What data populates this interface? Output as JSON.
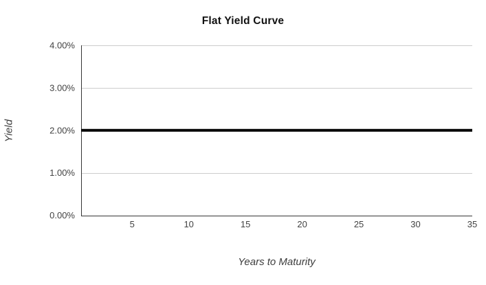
{
  "chart_data": {
    "type": "line",
    "title": "Flat Yield Curve",
    "xlabel": "Years to Maturity",
    "ylabel": "Yield",
    "x": [
      0.5,
      5,
      10,
      15,
      20,
      25,
      30,
      35
    ],
    "series": [
      {
        "name": "Flat yield curve",
        "values": [
          2.0,
          2.0,
          2.0,
          2.0,
          2.0,
          2.0,
          2.0,
          2.0
        ],
        "color": "#000000",
        "line_width": 4
      }
    ],
    "xlim": [
      0.5,
      35
    ],
    "ylim": [
      0,
      4
    ],
    "x_ticks": [
      5,
      10,
      15,
      20,
      25,
      30,
      35
    ],
    "x_tick_labels": [
      "5",
      "10",
      "15",
      "20",
      "25",
      "30",
      "35"
    ],
    "y_ticks": [
      0,
      1,
      2,
      3,
      4
    ],
    "y_tick_labels": [
      "0.00%",
      "1.00%",
      "2.00%",
      "3.00%",
      "4.00%"
    ],
    "y_unit": "percent",
    "grid": "horizontal-only",
    "legend": "none",
    "colors": {
      "background": "#ffffff",
      "gridline": "#cccccc",
      "axis_line": "#333333",
      "tick_label": "#424242",
      "title": "#111111",
      "axis_title": "#3d3d3d",
      "series": "#000000"
    }
  }
}
